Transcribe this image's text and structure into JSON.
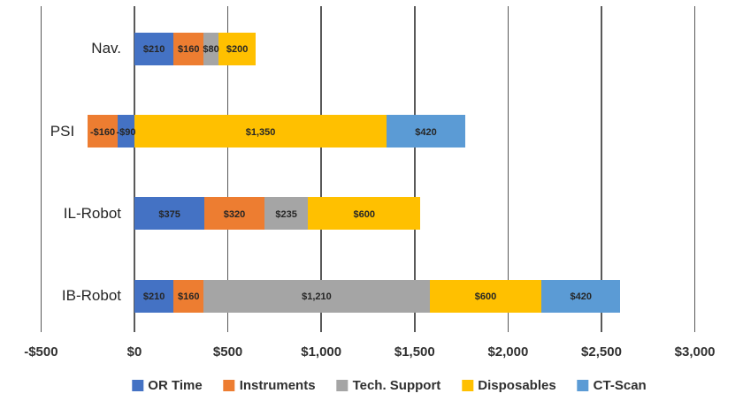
{
  "chart_data": {
    "type": "bar",
    "orientation": "horizontal",
    "stacked": true,
    "title": "",
    "xlabel": "",
    "ylabel": "",
    "grid": "vertical",
    "legend_position": "bottom",
    "axis": {
      "min": -500,
      "max": 3000,
      "ticks": [
        {
          "value": -500,
          "label": "-$500"
        },
        {
          "value": 0,
          "label": "$0"
        },
        {
          "value": 500,
          "label": "$500"
        },
        {
          "value": 1000,
          "label": "$1,000"
        },
        {
          "value": 1500,
          "label": "$1,500"
        },
        {
          "value": 2000,
          "label": "$2,000"
        },
        {
          "value": 2500,
          "label": "$2,500"
        },
        {
          "value": 3000,
          "label": "$3,000"
        }
      ]
    },
    "categories": [
      "Nav.",
      "PSI",
      "IL-Robot",
      "IB-Robot"
    ],
    "series": [
      {
        "name": "OR Time",
        "color": "#4472C4",
        "values": [
          210,
          -90,
          375,
          210
        ],
        "labels": [
          "$210",
          "-$90",
          "$375",
          "$210"
        ]
      },
      {
        "name": "Instruments",
        "color": "#ED7D31",
        "values": [
          160,
          -160,
          320,
          160
        ],
        "labels": [
          "$160",
          "-$160",
          "$320",
          "$160"
        ]
      },
      {
        "name": "Tech. Support",
        "color": "#A5A5A5",
        "values": [
          80,
          0,
          235,
          1210
        ],
        "labels": [
          "$80",
          null,
          "$235",
          "$1,210"
        ]
      },
      {
        "name": "Disposables",
        "color": "#FFC000",
        "values": [
          200,
          1350,
          600,
          600
        ],
        "labels": [
          "$200",
          "$1,350",
          "$600",
          "$600"
        ]
      },
      {
        "name": "CT-Scan",
        "color": "#5B9BD5",
        "values": [
          0,
          420,
          0,
          420
        ],
        "labels": [
          null,
          "$420",
          null,
          "$420"
        ]
      }
    ],
    "colors": {
      "gridline": "#595959",
      "text": "#303030",
      "data_label": "#262626"
    }
  }
}
